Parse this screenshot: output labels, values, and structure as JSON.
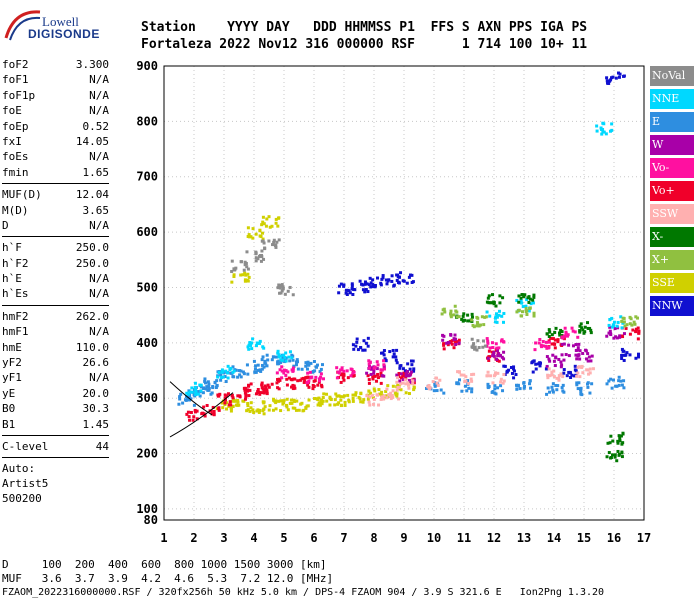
{
  "logo": {
    "top": "Lowell",
    "bottom": "DIGISONDE"
  },
  "header": {
    "row1": "Station    YYYY DAY   DDD HHMMSS P1  FFS S AXN PPS IGA PS",
    "row2": "Fortaleza 2022 Nov12 316 000000 RSF      1 714 100 10+ 11"
  },
  "params": {
    "group1": [
      {
        "k": "foF2",
        "v": "3.300"
      },
      {
        "k": "foF1",
        "v": "N/A"
      },
      {
        "k": "foF1p",
        "v": "N/A"
      },
      {
        "k": "foE",
        "v": "N/A"
      },
      {
        "k": "foEp",
        "v": "0.52"
      },
      {
        "k": "fxI",
        "v": "14.05"
      },
      {
        "k": "foEs",
        "v": "N/A"
      },
      {
        "k": "fmin",
        "v": "1.65"
      }
    ],
    "group2": [
      {
        "k": "MUF(D)",
        "v": "12.04"
      },
      {
        "k": "M(D)",
        "v": "3.65"
      },
      {
        "k": "D",
        "v": "N/A"
      }
    ],
    "group3": [
      {
        "k": "h`F",
        "v": "250.0"
      },
      {
        "k": "h`F2",
        "v": "250.0"
      },
      {
        "k": "h`E",
        "v": "N/A"
      },
      {
        "k": "h`Es",
        "v": "N/A"
      }
    ],
    "group4": [
      {
        "k": "hmF2",
        "v": "262.0"
      },
      {
        "k": "hmF1",
        "v": "N/A"
      },
      {
        "k": "hmE",
        "v": "110.0"
      },
      {
        "k": "yF2",
        "v": "26.6"
      },
      {
        "k": "yF1",
        "v": "N/A"
      },
      {
        "k": "yE",
        "v": "20.0"
      },
      {
        "k": "B0",
        "v": "30.3"
      },
      {
        "k": "B1",
        "v": "1.45"
      }
    ],
    "clevel": {
      "k": "C-level",
      "v": "44"
    },
    "auto": [
      "Auto:",
      "Artist5",
      "500200"
    ]
  },
  "legend": [
    {
      "label": "NoVal",
      "color": "#8c8c8c"
    },
    {
      "label": "NNE",
      "color": "#00d8ff"
    },
    {
      "label": "E",
      "color": "#2e8ee0"
    },
    {
      "label": "W",
      "color": "#a800a8"
    },
    {
      "label": "Vo-",
      "color": "#ff10a0"
    },
    {
      "label": "Vo+",
      "color": "#f0002a"
    },
    {
      "label": "SSW",
      "color": "#ffb0b0"
    },
    {
      "label": "X-",
      "color": "#007800"
    },
    {
      "label": "X+",
      "color": "#90c040"
    },
    {
      "label": "SSE",
      "color": "#d0d000"
    },
    {
      "label": "NNW",
      "color": "#1010d0"
    }
  ],
  "footer": {
    "d_row": "D     100  200  400  600  800 1000 1500 3000 [km]",
    "muf_row": "MUF   3.6  3.7  3.9  4.2  4.6  5.3  7.2 12.0 [MHz]",
    "file_row": "FZAOM_2022316000000.RSF / 320fx256h 50 kHz 5.0 km / DPS-4 FZAOM 904 / 3.9 S 321.6 E   Ion2Png 1.3.20"
  },
  "chart_data": {
    "type": "scatter",
    "xlim": [
      1,
      17
    ],
    "ylim": [
      80,
      900
    ],
    "x_ticks": [
      1,
      2,
      3,
      4,
      5,
      6,
      7,
      8,
      9,
      10,
      11,
      12,
      13,
      14,
      15,
      16,
      17
    ],
    "y_ticks": [
      80,
      100,
      200,
      300,
      400,
      500,
      600,
      700,
      800,
      900
    ],
    "grid": "dotted",
    "legend_position": "right",
    "series": [
      {
        "name": "E",
        "color": "#2e8ee0",
        "points": [
          [
            1.7,
            300
          ],
          [
            2.0,
            310
          ],
          [
            2.3,
            320
          ],
          [
            2.6,
            330
          ],
          [
            3.0,
            340
          ],
          [
            3.5,
            350
          ],
          [
            4.0,
            360
          ],
          [
            4.5,
            370
          ],
          [
            5.0,
            370
          ],
          [
            5.5,
            365
          ],
          [
            6.0,
            360
          ],
          [
            10.0,
            320
          ],
          [
            11.0,
            325
          ],
          [
            12.0,
            320
          ],
          [
            13.0,
            325
          ],
          [
            14.0,
            320
          ],
          [
            15.0,
            320
          ],
          [
            16.0,
            330
          ]
        ]
      },
      {
        "name": "SSE",
        "color": "#d0d000",
        "points": [
          [
            3.0,
            290
          ],
          [
            3.5,
            290
          ],
          [
            4.0,
            285
          ],
          [
            4.5,
            290
          ],
          [
            5.0,
            290
          ],
          [
            5.5,
            290
          ],
          [
            6.0,
            295
          ],
          [
            6.5,
            300
          ],
          [
            7.0,
            300
          ],
          [
            7.5,
            305
          ],
          [
            8.0,
            310
          ],
          [
            8.5,
            315
          ],
          [
            9.0,
            320
          ],
          [
            4.0,
            600
          ],
          [
            4.5,
            620
          ],
          [
            3.5,
            520
          ]
        ]
      },
      {
        "name": "Vo+",
        "color": "#f0002a",
        "points": [
          [
            2.0,
            270
          ],
          [
            2.5,
            280
          ],
          [
            3.0,
            300
          ],
          [
            3.5,
            310
          ],
          [
            4.0,
            320
          ],
          [
            4.5,
            320
          ],
          [
            5.0,
            330
          ],
          [
            5.5,
            330
          ],
          [
            6.0,
            330
          ],
          [
            7.0,
            340
          ],
          [
            8.0,
            340
          ],
          [
            9.0,
            340
          ],
          [
            10.5,
            400
          ],
          [
            12.0,
            380
          ],
          [
            14.0,
            400
          ],
          [
            16.5,
            420
          ]
        ]
      },
      {
        "name": "NNW",
        "color": "#1010d0",
        "points": [
          [
            7.0,
            498
          ],
          [
            7.5,
            505
          ],
          [
            8.0,
            510
          ],
          [
            8.5,
            515
          ],
          [
            9.0,
            520
          ],
          [
            7.5,
            400
          ],
          [
            8.5,
            380
          ],
          [
            9.0,
            360
          ],
          [
            12.5,
            350
          ],
          [
            13.5,
            360
          ],
          [
            14.5,
            350
          ],
          [
            16.5,
            380
          ],
          [
            16.0,
            880
          ]
        ]
      },
      {
        "name": "W",
        "color": "#a800a8",
        "points": [
          [
            8.0,
            350
          ],
          [
            9.0,
            340
          ],
          [
            10.5,
            410
          ],
          [
            12.0,
            380
          ],
          [
            14.0,
            370
          ],
          [
            14.5,
            390
          ],
          [
            15.0,
            380
          ],
          [
            16.0,
            420
          ]
        ]
      },
      {
        "name": "NNE",
        "color": "#00d8ff",
        "points": [
          [
            2.0,
            320
          ],
          [
            3.0,
            350
          ],
          [
            4.0,
            400
          ],
          [
            5.0,
            380
          ],
          [
            12.0,
            450
          ],
          [
            13.0,
            470
          ],
          [
            15.6,
            790
          ],
          [
            16.0,
            440
          ]
        ]
      },
      {
        "name": "SSW",
        "color": "#ffb0b0",
        "points": [
          [
            8.0,
            300
          ],
          [
            8.5,
            310
          ],
          [
            9.0,
            330
          ],
          [
            10.0,
            330
          ],
          [
            11.0,
            340
          ],
          [
            12.0,
            340
          ],
          [
            14.0,
            345
          ],
          [
            15.0,
            350
          ]
        ]
      },
      {
        "name": "X-",
        "color": "#007800",
        "points": [
          [
            11.0,
            450
          ],
          [
            12.0,
            480
          ],
          [
            13.0,
            480
          ],
          [
            14.0,
            420
          ],
          [
            15.0,
            430
          ],
          [
            16.0,
            200
          ],
          [
            16.0,
            230
          ]
        ]
      },
      {
        "name": "X+",
        "color": "#90c040",
        "points": [
          [
            10.5,
            460
          ],
          [
            11.5,
            440
          ],
          [
            13.0,
            460
          ],
          [
            16.5,
            440
          ]
        ]
      },
      {
        "name": "Vo-",
        "color": "#ff10a0",
        "points": [
          [
            5.0,
            350
          ],
          [
            6.0,
            340
          ],
          [
            7.0,
            350
          ],
          [
            8.0,
            360
          ],
          [
            12.0,
            400
          ],
          [
            13.5,
            400
          ],
          [
            14.5,
            420
          ]
        ]
      },
      {
        "name": "NoVal",
        "color": "#8c8c8c",
        "points": [
          [
            3.5,
            540
          ],
          [
            4.0,
            560
          ],
          [
            4.5,
            580
          ],
          [
            5.0,
            500
          ],
          [
            11.5,
            400
          ]
        ]
      }
    ]
  }
}
